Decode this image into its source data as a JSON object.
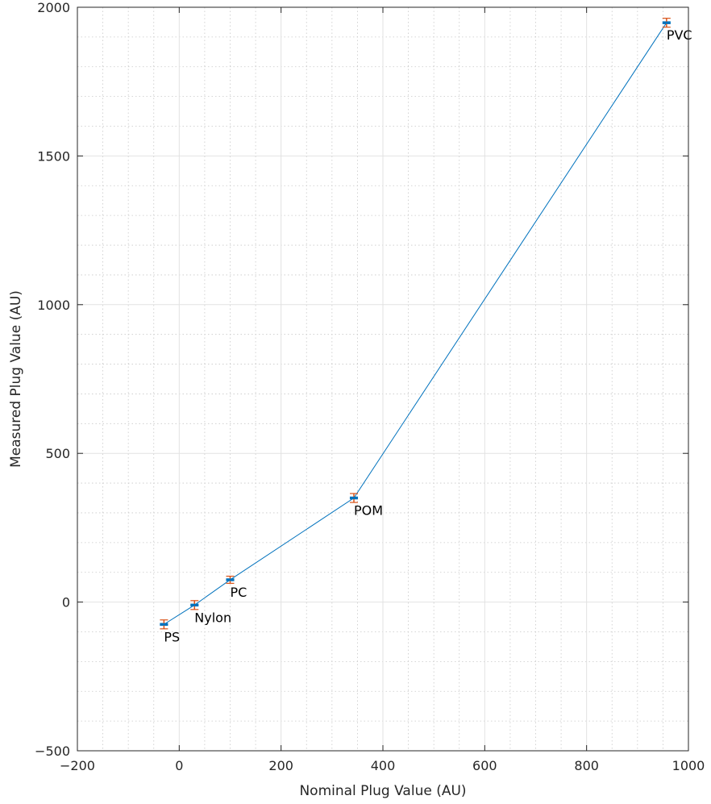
{
  "chart_data": {
    "type": "line",
    "title": "",
    "xlabel": "Nominal Plug Value (AU)",
    "ylabel": "Measured Plug Value (AU)",
    "xlim": [
      -200,
      1000
    ],
    "ylim": [
      -500,
      2000
    ],
    "xticks": [
      -200,
      0,
      200,
      400,
      600,
      800,
      1000
    ],
    "yticks": [
      -500,
      0,
      500,
      1000,
      1500,
      2000
    ],
    "grid": true,
    "minor_grid": true,
    "line_color": "#0072BD",
    "marker_color": "#0072BD",
    "errorbar_color": "#D95319",
    "series": [
      {
        "x": [
          -30,
          30,
          100,
          343,
          957
        ],
        "y": [
          -75,
          -10,
          75,
          350,
          1948
        ],
        "labels": [
          "PS",
          "Nylon",
          "PC",
          "POM",
          "PVC"
        ],
        "x_err": [
          8,
          8,
          8,
          8,
          8
        ],
        "y_err": [
          15,
          15,
          12,
          15,
          15
        ]
      }
    ]
  }
}
